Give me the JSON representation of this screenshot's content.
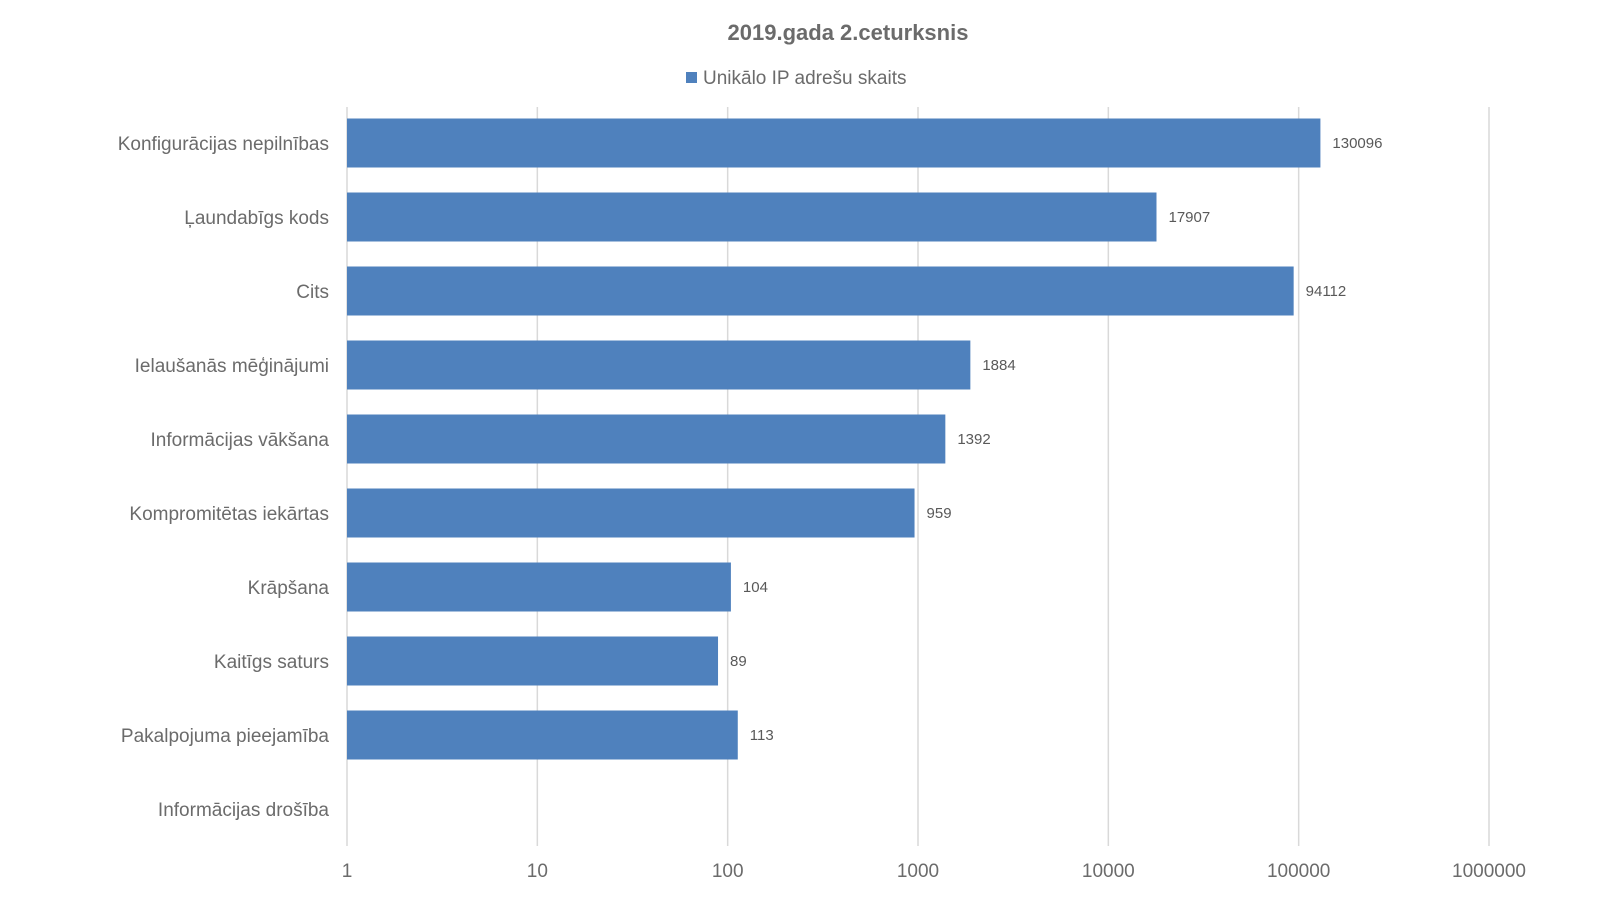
{
  "chart_data": {
    "type": "bar",
    "orientation": "horizontal",
    "title": "2019.gada 2.ceturksnis",
    "legend": "top",
    "x_scale": "log",
    "xlim": [
      1,
      1000000
    ],
    "x_ticks": [
      "1",
      "10",
      "100",
      "1000",
      "10000",
      "100000",
      "1000000"
    ],
    "x_tick_values": [
      1,
      10,
      100,
      1000,
      10000,
      100000,
      1000000
    ],
    "grid": true,
    "categories": [
      "Konfigurācijas nepilnības",
      "Ļaundabīgs kods",
      "Cits",
      "Ielaušanās mēģinājumi",
      "Informācijas vākšana",
      "Kompromitētas iekārtas",
      "Krāpšana",
      "Kaitīgs saturs",
      "Pakalpojuma pieejamība",
      "Informācijas drošība"
    ],
    "series": [
      {
        "name": "Unikālo IP adrešu skaits",
        "color": "#4f81bd",
        "values": [
          130096,
          17907,
          94112,
          1884,
          1392,
          959,
          104,
          89,
          113,
          null
        ],
        "labels": [
          "130096",
          "17907",
          "94112",
          "1884",
          "1392",
          "959",
          "104",
          "89",
          "113",
          ""
        ]
      }
    ]
  }
}
